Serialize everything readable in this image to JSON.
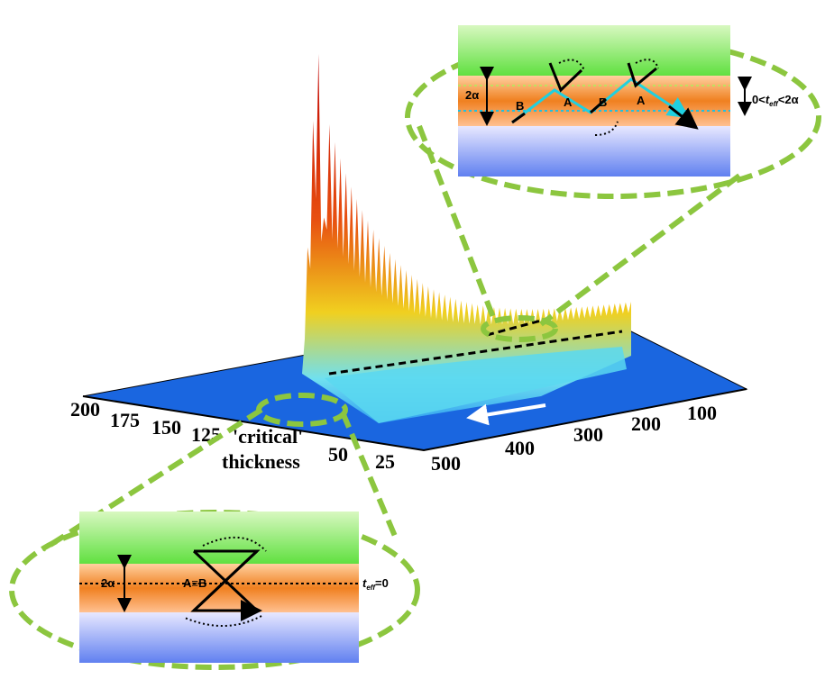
{
  "axes": {
    "thickness_ticks": [
      "200",
      "175",
      "150",
      "125",
      "50",
      "25"
    ],
    "position_ticks": [
      "500",
      "400",
      "300",
      "200",
      "100"
    ],
    "annotation": {
      "line1": "'critical'",
      "line2": "thickness"
    }
  },
  "top_inset": {
    "width_label": "2α",
    "labels": [
      "B",
      "A",
      "B",
      "A"
    ],
    "condition": {
      "left": "0<",
      "t": "t",
      "sub": "eff",
      "right": "<2α"
    }
  },
  "bottom_inset": {
    "width_label": "2α",
    "overlap_label": "A≡B",
    "condition": {
      "t": "t",
      "sub": "eff",
      "right": "=0"
    }
  }
}
